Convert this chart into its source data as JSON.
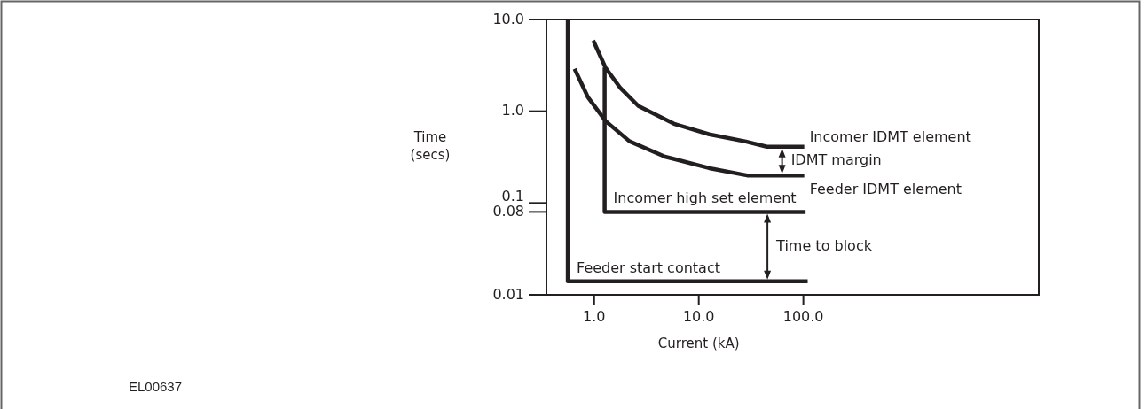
{
  "chart_data": {
    "type": "line",
    "xlabel": "Current (kA)",
    "ylabel": "Time (secs)",
    "log": "xy",
    "grid": false,
    "marker": "none",
    "line_style": "solid",
    "xlim": [
      0.35,
      17800
    ],
    "ylim": [
      0.01,
      10
    ],
    "xticks": [
      {
        "value": 1,
        "label": "1.0"
      },
      {
        "value": 10,
        "label": "10.0"
      },
      {
        "value": 100,
        "label": "100.0"
      }
    ],
    "yticks": [
      {
        "value": 0.01,
        "label": "0.01"
      },
      {
        "value": 0.08,
        "label": "0.08"
      },
      {
        "value": 0.1,
        "label": "0.1"
      },
      {
        "value": 1,
        "label": "1.0"
      },
      {
        "value": 10,
        "label": "10.0"
      }
    ],
    "series": [
      {
        "name": "Incomer IDMT element",
        "color": "#231f20",
        "x": [
          0.98,
          1.29,
          1.79,
          2.65,
          5.8,
          12.6,
          27.6,
          44.8,
          102
        ],
        "values": [
          5.9,
          2.96,
          1.78,
          1.14,
          0.73,
          0.56,
          0.47,
          0.41,
          0.41
        ]
      },
      {
        "name": "Feeder IDMT element",
        "color": "#231f20",
        "x": [
          0.65,
          0.87,
          1.29,
          2.18,
          4.76,
          12.6,
          29,
          102
        ],
        "values": [
          2.9,
          1.43,
          0.78,
          0.47,
          0.32,
          0.24,
          0.2,
          0.2
        ]
      },
      {
        "name": "Incomer high set element",
        "color": "#231f20",
        "x": [
          1.26,
          1.26,
          105
        ],
        "values": [
          3,
          0.08,
          0.08
        ]
      },
      {
        "name": "Feeder start contact",
        "color": "#231f20",
        "x": [
          0.56,
          0.56,
          110
        ],
        "values": [
          10,
          0.014,
          0.014
        ]
      }
    ],
    "annotations": [
      "IDMT margin",
      "Time to block",
      "EL00637"
    ]
  }
}
